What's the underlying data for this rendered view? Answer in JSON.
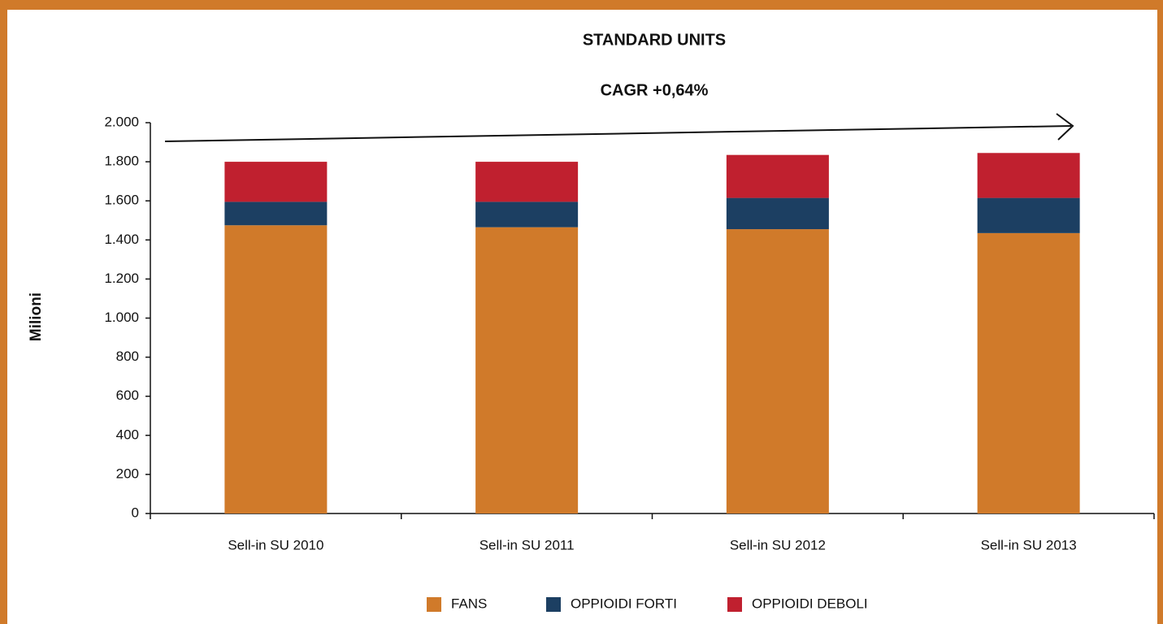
{
  "chart_data": {
    "type": "stacked_bar",
    "title": "STANDARD UNITS",
    "subtitle": "CAGR +0,64%",
    "y_label": "Milioni",
    "categories": [
      "Sell-in SU 2010",
      "Sell-in SU 2011",
      "Sell-in SU 2012",
      "Sell-in SU 2013"
    ],
    "series": [
      {
        "name": "FANS",
        "color": "#d07a2a",
        "values": [
          1475,
          1465,
          1455,
          1435
        ]
      },
      {
        "name": "OPPIOIDI FORTI",
        "color": "#1c3f62",
        "values": [
          120,
          130,
          160,
          180
        ]
      },
      {
        "name": "OPPIOIDI DEBOLI",
        "color": "#c0202f",
        "values": [
          205,
          205,
          220,
          230
        ]
      }
    ],
    "ylim": [
      0,
      2000
    ],
    "yticks": [
      0,
      200,
      400,
      600,
      800,
      {
        "value": 1000,
        "label": "1.000"
      },
      {
        "value": 1200,
        "label": "1.200"
      },
      {
        "value": 1400,
        "label": "1.400"
      },
      {
        "value": 1600,
        "label": "1.600"
      },
      {
        "value": 1800,
        "label": "1.800"
      },
      {
        "value": 2000,
        "label": "2.000"
      }
    ],
    "legend": "bottom"
  }
}
